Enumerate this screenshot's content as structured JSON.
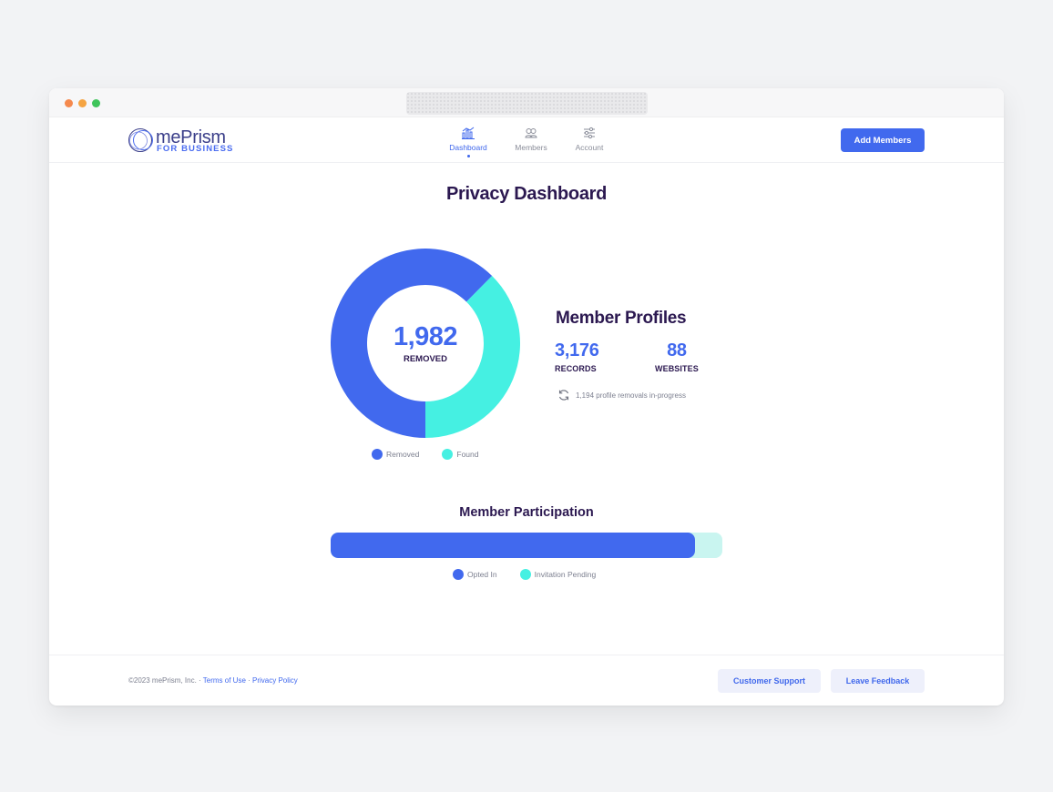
{
  "brand": {
    "name": "mePrism",
    "sub": "FOR BUSINESS",
    "accent": "#4169ee",
    "teal": "#45f0e2",
    "dark": "#2b1850"
  },
  "nav": {
    "items": [
      {
        "label": "Dashboard",
        "icon": "chart-icon",
        "active": true
      },
      {
        "label": "Members",
        "icon": "members-icon",
        "active": false
      },
      {
        "label": "Account",
        "icon": "sliders-icon",
        "active": false
      }
    ],
    "add_members_label": "Add Members"
  },
  "page": {
    "title": "Privacy Dashboard"
  },
  "removal_summary": {
    "center_value": "1,982",
    "center_label": "REMOVED",
    "legend": [
      {
        "label": "Removed",
        "color": "#4169ee"
      },
      {
        "label": "Found",
        "color": "#45f0e2"
      }
    ]
  },
  "member_profiles": {
    "title": "Member Profiles",
    "records_value": "3,176",
    "records_label": "RECORDS",
    "websites_value": "88",
    "websites_label": "WEBSITES",
    "in_progress_note": "1,194 profile removals in-progress"
  },
  "participation": {
    "title": "Member Participation",
    "opted_in_fraction": 0.93,
    "legend": [
      {
        "label": "Opted In",
        "color": "#4169ee"
      },
      {
        "label": "Invitation Pending",
        "color": "#45f0e2"
      }
    ]
  },
  "footer": {
    "copyright": "©2023 mePrism, Inc. · ",
    "terms_label": "Terms of Use",
    "separator": " · ",
    "privacy_label": "Privacy Policy",
    "support_label": "Customer Support",
    "feedback_label": "Leave Feedback"
  },
  "chart_data": [
    {
      "type": "pie",
      "categories": [
        "Removed",
        "Found"
      ],
      "values": [
        1982,
        1194
      ],
      "title": "",
      "center_label": "1,982 REMOVED"
    },
    {
      "type": "bar",
      "categories": [
        "Opted In",
        "Invitation Pending"
      ],
      "values": [
        93,
        7
      ],
      "title": "Member Participation"
    }
  ]
}
